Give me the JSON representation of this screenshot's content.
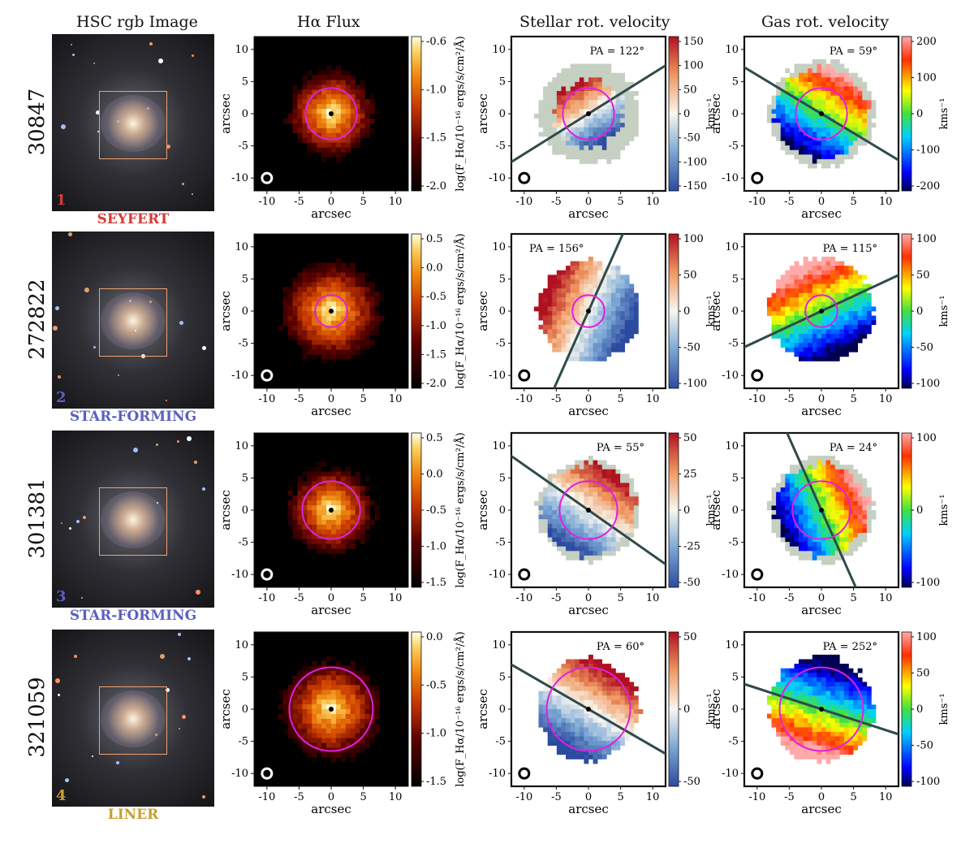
{
  "column_titles": [
    "HSC rgb Image",
    "Hα Flux",
    "Stellar rot. velocity",
    "Gas rot. velocity"
  ],
  "axis_label": "arcsec",
  "kms_label": "kms⁻¹",
  "colors": {
    "seyfert": "#d83a3a",
    "star_forming": "#5a60c0",
    "liner": "#c8a030",
    "aperture_circle": "#e020e0",
    "pa_line": "#2f4a4a",
    "mask_grey": "#c6d0c2"
  },
  "chart_data": [
    {
      "type": "heatmap",
      "row": 1,
      "galaxy_id": "30847",
      "panel_number": "1",
      "classification": "SEYFERT",
      "class_color": "#d83a3a",
      "xlim": [
        -12,
        12
      ],
      "ylim": [
        -12,
        12
      ],
      "xticks": [
        -10,
        -5,
        0,
        5,
        10
      ],
      "yticks": [
        -10,
        -5,
        0,
        5,
        10
      ],
      "flux": {
        "cbar_label": "log(F_Hα/10⁻¹⁶ ergs/s/cm²/Å)",
        "cbar_ticks": [
          "-0.6",
          "-1.0",
          "-1.5",
          "-2.0"
        ],
        "circle_r": 4,
        "extent": 6
      },
      "stellar": {
        "pa_label": "PA = 122°",
        "pa_deg": 122,
        "circle_r": 4,
        "cbar_ticks": [
          "150",
          "100",
          "50",
          "0",
          "-50",
          "-100",
          "-150"
        ],
        "vrange": [
          -150,
          150
        ]
      },
      "gas": {
        "pa_label": "PA = 59°",
        "pa_deg": 59,
        "circle_r": 4,
        "cbar_ticks": [
          "200",
          "100",
          "0",
          "-100",
          "-200"
        ],
        "vrange": [
          -240,
          240
        ]
      }
    },
    {
      "type": "heatmap",
      "row": 2,
      "galaxy_id": "272822",
      "panel_number": "2",
      "classification": "STAR-FORMING",
      "class_color": "#5a60c0",
      "xlim": [
        -12,
        12
      ],
      "ylim": [
        -12,
        12
      ],
      "xticks": [
        -10,
        -5,
        0,
        5,
        10
      ],
      "yticks": [
        -10,
        -5,
        0,
        5,
        10
      ],
      "flux": {
        "cbar_label": "log(F_Hα/10⁻¹⁶ ergs/s/cm²/Å)",
        "cbar_ticks": [
          "0.5",
          "0.0",
          "-0.5",
          "-1.0",
          "-1.5",
          "-2.0"
        ],
        "circle_r": 2.5,
        "extent": 7
      },
      "stellar": {
        "pa_label": "PA = 156°",
        "pa_deg": 156,
        "circle_r": 2.5,
        "cbar_ticks": [
          "100",
          "50",
          "0",
          "-50",
          "-100"
        ],
        "vrange": [
          -125,
          125
        ]
      },
      "gas": {
        "pa_label": "PA = 115°",
        "pa_deg": 115,
        "circle_r": 2.5,
        "cbar_ticks": [
          "100",
          "50",
          "0",
          "-50",
          "-100"
        ],
        "vrange": [
          -125,
          125
        ]
      }
    },
    {
      "type": "heatmap",
      "row": 3,
      "galaxy_id": "301381",
      "panel_number": "3",
      "classification": "STAR-FORMING",
      "class_color": "#5a60c0",
      "xlim": [
        -12,
        12
      ],
      "ylim": [
        -12,
        12
      ],
      "xticks": [
        -10,
        -5,
        0,
        5,
        10
      ],
      "yticks": [
        -10,
        -5,
        0,
        5,
        10
      ],
      "flux": {
        "cbar_label": "log(F_Hα/10⁻¹⁶ ergs/s/cm²/Å)",
        "cbar_ticks": [
          "0.5",
          "0.0",
          "-0.5",
          "-1.0",
          "-1.5"
        ],
        "circle_r": 4.5,
        "extent": 6
      },
      "stellar": {
        "pa_label": "PA = 55°",
        "pa_deg": 55,
        "circle_r": 4.5,
        "cbar_ticks": [
          "50",
          "25",
          "0",
          "-25",
          "-50"
        ],
        "vrange": [
          -70,
          70
        ]
      },
      "gas": {
        "pa_label": "PA = 24°",
        "pa_deg": 24,
        "circle_r": 4.5,
        "cbar_ticks": [
          "100",
          "0",
          "-100"
        ],
        "vrange": [
          -140,
          140
        ]
      }
    },
    {
      "type": "heatmap",
      "row": 4,
      "galaxy_id": "321059",
      "panel_number": "4",
      "classification": "LINER",
      "class_color": "#c8a030",
      "xlim": [
        -12,
        12
      ],
      "ylim": [
        -12,
        12
      ],
      "xticks": [
        -10,
        -5,
        0,
        5,
        10
      ],
      "yticks": [
        -10,
        -5,
        0,
        5,
        10
      ],
      "flux": {
        "cbar_label": "log(F_Hα/10⁻¹⁶ ergs/s/cm²/Å)",
        "cbar_ticks": [
          "0.0",
          "-0.5",
          "-1.0",
          "-1.5"
        ],
        "circle_r": 6.5,
        "extent": 7
      },
      "stellar": {
        "pa_label": "PA = 60°",
        "pa_deg": 60,
        "circle_r": 6.5,
        "cbar_ticks": [
          "50",
          "0",
          "-50"
        ],
        "vrange": [
          -90,
          90
        ]
      },
      "gas": {
        "pa_label": "PA = 252°",
        "pa_deg": 252,
        "circle_r": 6.5,
        "cbar_ticks": [
          "100",
          "50",
          "0",
          "-50",
          "-100"
        ],
        "vrange": [
          -110,
          110
        ]
      }
    }
  ]
}
